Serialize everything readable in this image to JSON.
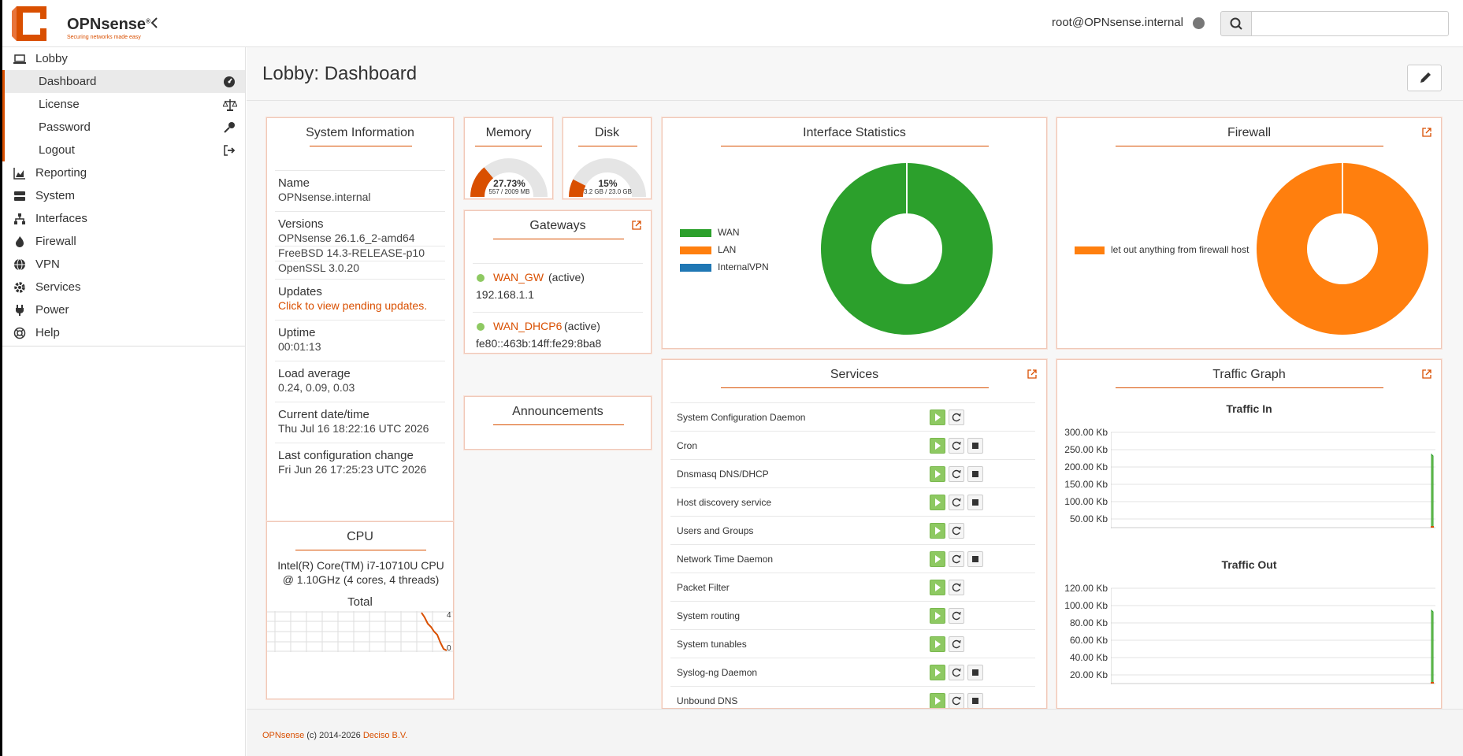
{
  "header": {
    "brand": "OPNsense",
    "tagline": "Securing networks made easy",
    "user": "root@OPNsense.internal"
  },
  "sidebar": {
    "items": [
      {
        "label": "Lobby",
        "icon": "laptop-icon"
      },
      {
        "label": "Reporting",
        "icon": "chart-area-icon"
      },
      {
        "label": "System",
        "icon": "server-icon"
      },
      {
        "label": "Interfaces",
        "icon": "sitemap-icon"
      },
      {
        "label": "Firewall",
        "icon": "fire-icon"
      },
      {
        "label": "VPN",
        "icon": "globe-icon"
      },
      {
        "label": "Services",
        "icon": "cog-icon"
      },
      {
        "label": "Power",
        "icon": "plug-icon"
      },
      {
        "label": "Help",
        "icon": "life-ring-icon"
      }
    ],
    "lobby_sub": [
      {
        "label": "Dashboard",
        "icon": "dashboard-icon"
      },
      {
        "label": "License",
        "icon": "balance-scale-icon"
      },
      {
        "label": "Password",
        "icon": "key-icon"
      },
      {
        "label": "Logout",
        "icon": "sign-out-icon"
      }
    ]
  },
  "page": {
    "title": "Lobby: Dashboard"
  },
  "sysinfo": {
    "title": "System Information",
    "name_label": "Name",
    "name": "OPNsense.internal",
    "versions_label": "Versions",
    "versions": [
      "OPNsense 26.1.6_2-amd64",
      "FreeBSD 14.3-RELEASE-p10",
      "OpenSSL 3.0.20"
    ],
    "updates_label": "Updates",
    "updates": "Click to view pending updates.",
    "uptime_label": "Uptime",
    "uptime": "00:01:13",
    "load_label": "Load average",
    "load": "0.24, 0.09, 0.03",
    "datetime_label": "Current date/time",
    "datetime": "Thu Jul 16 18:22:16 UTC 2026",
    "lastconf_label": "Last configuration change",
    "lastconf": "Fri Jun 26 17:25:23 UTC 2026"
  },
  "memory": {
    "title": "Memory",
    "percent": "27.73%",
    "detail": "557 / 2009 MB",
    "fraction": 0.2773
  },
  "disk": {
    "title": "Disk",
    "percent": "15%",
    "detail": "3.2 GB / 23.0 GB",
    "fraction": 0.15
  },
  "gateways": {
    "title": "Gateways",
    "items": [
      {
        "name": "WAN_GW",
        "status": "(active)",
        "address": "192.168.1.1"
      },
      {
        "name": "WAN_DHCP6",
        "status": "(active)",
        "address": "fe80::463b:14ff:fe29:8ba8"
      }
    ]
  },
  "announcements": {
    "title": "Announcements"
  },
  "cpu": {
    "title": "CPU",
    "model": "Intel(R) Core(TM) i7-10710U CPU @ 1.10GHz (4 cores, 4 threads)",
    "total_label": "Total",
    "axis_top": "4",
    "axis_bottom": "0"
  },
  "interface_stats": {
    "title": "Interface Statistics",
    "legend": [
      {
        "label": "WAN",
        "color": "#2ca02c"
      },
      {
        "label": "LAN",
        "color": "#ff7f0e"
      },
      {
        "label": "InternalVPN",
        "color": "#1f77b4"
      }
    ]
  },
  "firewall": {
    "title": "Firewall",
    "legend": [
      {
        "label": "let out anything from firewall host",
        "color": "#ff7f0e"
      }
    ]
  },
  "services": {
    "title": "Services",
    "items": [
      {
        "name": "System Configuration Daemon",
        "stop": false
      },
      {
        "name": "Cron",
        "stop": true
      },
      {
        "name": "Dnsmasq DNS/DHCP",
        "stop": true
      },
      {
        "name": "Host discovery service",
        "stop": true
      },
      {
        "name": "Users and Groups",
        "stop": false
      },
      {
        "name": "Network Time Daemon",
        "stop": true
      },
      {
        "name": "Packet Filter",
        "stop": false
      },
      {
        "name": "System routing",
        "stop": false
      },
      {
        "name": "System tunables",
        "stop": false
      },
      {
        "name": "Syslog-ng Daemon",
        "stop": true
      },
      {
        "name": "Unbound DNS",
        "stop": true
      }
    ]
  },
  "traffic": {
    "title": "Traffic Graph",
    "in_title": "Traffic In",
    "in_ticks": [
      "300.00 Kb",
      "250.00 Kb",
      "200.00 Kb",
      "150.00 Kb",
      "100.00 Kb",
      "50.00 Kb"
    ],
    "out_title": "Traffic Out",
    "out_ticks": [
      "120.00 Kb",
      "100.00 Kb",
      "80.00 Kb",
      "60.00 Kb",
      "40.00 Kb",
      "20.00 Kb"
    ]
  },
  "footer": {
    "brand": "OPNsense",
    "copy": " (c) 2014-2026 ",
    "company": "Deciso B.V."
  }
}
